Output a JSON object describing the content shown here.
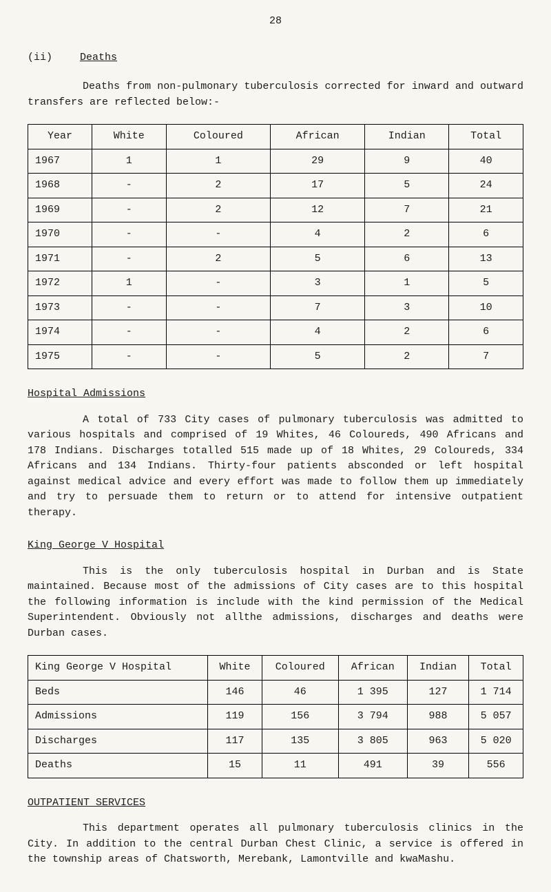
{
  "page_number": "28",
  "section": {
    "label_roman": "(ii)",
    "label_title": "Deaths"
  },
  "intro_paragraph": "Deaths from non-pulmonary tuberculosis corrected for inward and outward transfers are reflected below:-",
  "table1": {
    "columns": [
      "Year",
      "White",
      "Coloured",
      "African",
      "Indian",
      "Total"
    ],
    "rows": [
      [
        "1967",
        "1",
        "1",
        "29",
        "9",
        "40"
      ],
      [
        "1968",
        "-",
        "2",
        "17",
        "5",
        "24"
      ],
      [
        "1969",
        "-",
        "2",
        "12",
        "7",
        "21"
      ],
      [
        "1970",
        "-",
        "-",
        "4",
        "2",
        "6"
      ],
      [
        "1971",
        "-",
        "2",
        "5",
        "6",
        "13"
      ],
      [
        "1972",
        "1",
        "-",
        "3",
        "1",
        "5"
      ],
      [
        "1973",
        "-",
        "-",
        "7",
        "3",
        "10"
      ],
      [
        "1974",
        "-",
        "-",
        "4",
        "2",
        "6"
      ],
      [
        "1975",
        "-",
        "-",
        "5",
        "2",
        "7"
      ]
    ]
  },
  "hospital_admissions": {
    "heading": "Hospital Admissions",
    "paragraph": "A total of 733 City cases of pulmonary tuberculosis was admitted to various hospitals and comprised of 19 Whites, 46 Coloureds, 490 Africans and 178 Indians. Discharges totalled 515 made up of 18 Whites, 29 Coloureds, 334 Africans and 134 Indians. Thirty-four patients absconded or left hospital against medical advice and every effort was made to follow them up immediately and try to persuade them to return or to attend for intensive outpatient therapy."
  },
  "king_george": {
    "heading": "King George V Hospital",
    "paragraph": "This is the only tuberculosis hospital in Durban and is State maintained. Because most of the admissions of City cases are to this hospital the following information is include with the kind permission of the Medical Superintendent. Obviously not allthe admissions, discharges and deaths were Durban cases."
  },
  "table2": {
    "header_label": "King George V Hospital",
    "columns": [
      "White",
      "Coloured",
      "African",
      "Indian",
      "Total"
    ],
    "rows": [
      [
        "Beds",
        "146",
        "46",
        "1 395",
        "127",
        "1 714"
      ],
      [
        "Admissions",
        "119",
        "156",
        "3 794",
        "988",
        "5 057"
      ],
      [
        "Discharges",
        "117",
        "135",
        "3 805",
        "963",
        "5 020"
      ],
      [
        "Deaths",
        "15",
        "11",
        "491",
        "39",
        "556"
      ]
    ]
  },
  "outpatient": {
    "heading": "OUTPATIENT SERVICES",
    "paragraph": "This department operates all pulmonary tuberculosis clinics in the City. In addition to the central Durban Chest Clinic, a service is offered in the township areas of Chatsworth, Merebank, Lamontville and kwaMashu."
  }
}
